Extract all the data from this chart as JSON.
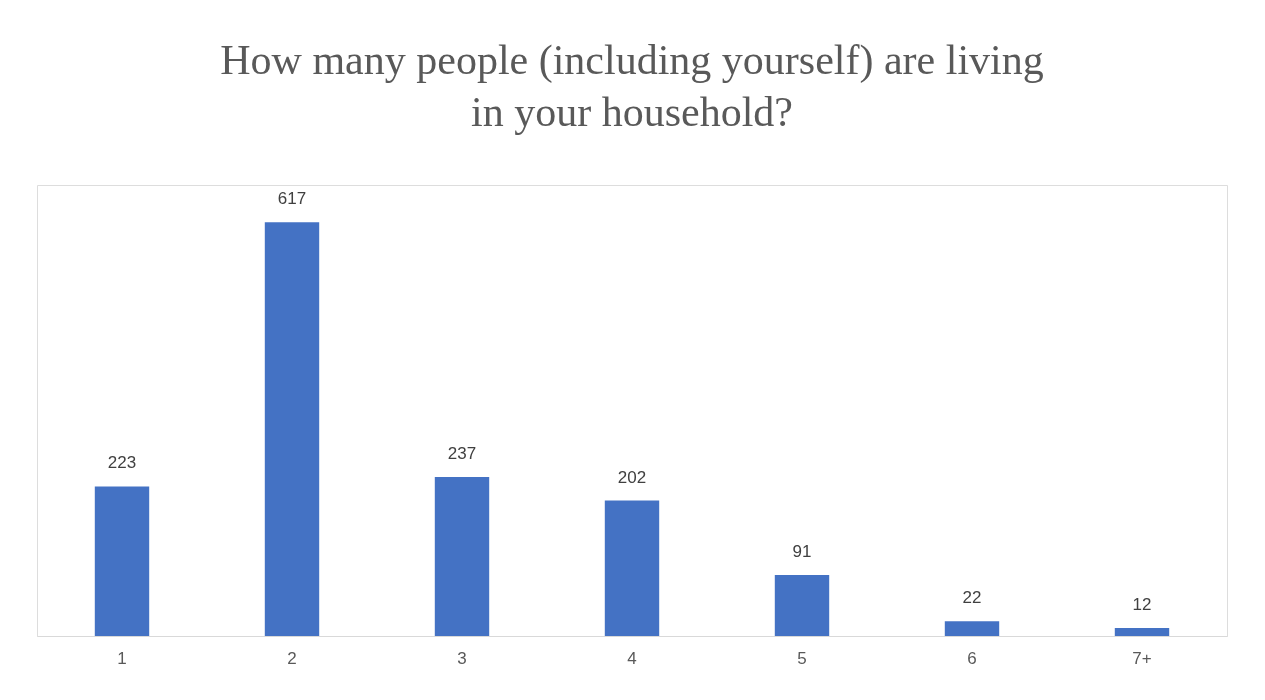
{
  "chart_data": {
    "type": "bar",
    "title": "How many people (including yourself) are living in your household?",
    "categories": [
      "1",
      "2",
      "3",
      "4",
      "5",
      "6",
      "7+"
    ],
    "values": [
      223,
      617,
      237,
      202,
      91,
      22,
      12
    ],
    "color": "#4472c4",
    "data_labels": true
  }
}
